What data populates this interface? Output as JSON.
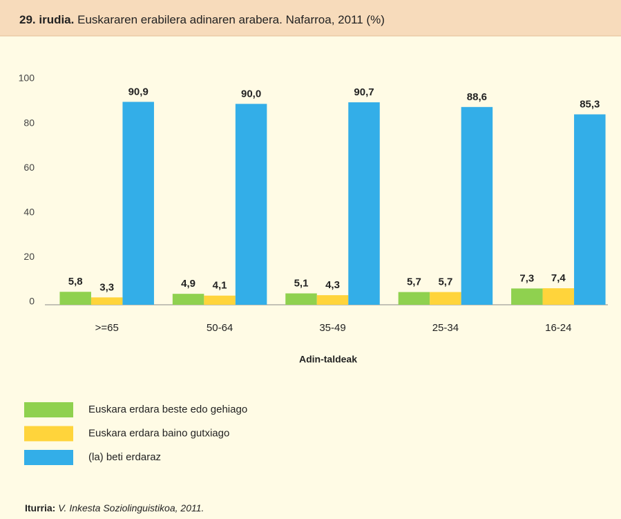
{
  "chart_data": {
    "type": "bar",
    "title_label": "29. irudia.",
    "title": "Euskararen erabilera adinaren arabera. Nafarroa, 2011 (%)",
    "x_label": "Adin-taldeak",
    "categories": [
      ">=65",
      "50-64",
      "35-49",
      "25-34",
      "16-24"
    ],
    "series": [
      {
        "name": "Euskara erdara beste edo gehiago",
        "color": "#8fd14f",
        "values": [
          5.8,
          4.9,
          5.1,
          5.7,
          7.3
        ],
        "value_labels": [
          "5,8",
          "4,9",
          "5,1",
          "5,7",
          "7,3"
        ]
      },
      {
        "name": "Euskara erdara baino gutxiago",
        "color": "#ffd43b",
        "values": [
          3.3,
          4.1,
          4.3,
          5.7,
          7.4
        ],
        "value_labels": [
          "3,3",
          "4,1",
          "4,3",
          "5,7",
          "7,4"
        ]
      },
      {
        "name": "(la) beti erdaraz",
        "color": "#33aee8",
        "values": [
          90.9,
          90.0,
          90.7,
          88.6,
          85.3
        ],
        "value_labels": [
          "90,9",
          "90,0",
          "90,7",
          "88,6",
          "85,3"
        ]
      }
    ],
    "ylim": [
      0,
      100
    ],
    "yticks": [
      0,
      20,
      40,
      60,
      80,
      100
    ],
    "grid": false,
    "source_label": "Iturria:",
    "source": "V. Inkesta Soziolinguistikoa, 2011."
  }
}
